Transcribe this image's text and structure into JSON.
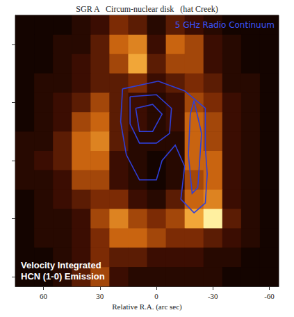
{
  "chart_data": {
    "type": "heatmap",
    "title": "SGR A   Circum-nuclear disk   (hat Creek)",
    "x_label": "Relative R.A. (arc sec)",
    "annotations": [
      "5 GHz Radio Continuum",
      "Velocity Integrated",
      "HCN (1-0) Emission"
    ],
    "xlim": [
      75,
      -65
    ],
    "xticks": [
      60,
      30,
      0,
      -30,
      -60
    ],
    "ylim": [
      -65,
      75
    ],
    "yticks": [
      60,
      30,
      0,
      -30,
      -60
    ],
    "tick_labels": "x",
    "grid": false,
    "x": [
      70,
      60,
      50,
      40,
      30,
      20,
      10,
      0,
      -10,
      -20,
      -30,
      -40,
      -50,
      -60
    ],
    "y": [
      70,
      60,
      50,
      40,
      30,
      20,
      10,
      0,
      -10,
      -20,
      -30,
      -40,
      -50,
      -60
    ],
    "intensity": [
      [
        0,
        0,
        0,
        1,
        2,
        4,
        3,
        1,
        3,
        2,
        1,
        0,
        0,
        0
      ],
      [
        0,
        0,
        1,
        1,
        3,
        6,
        7,
        2,
        6,
        5,
        2,
        1,
        0,
        0
      ],
      [
        0,
        0,
        1,
        2,
        3,
        5,
        8,
        3,
        5,
        5,
        2,
        1,
        0,
        0
      ],
      [
        0,
        1,
        1,
        2,
        3,
        3,
        4,
        2,
        3,
        4,
        3,
        1,
        1,
        0
      ],
      [
        0,
        1,
        2,
        3,
        5,
        3,
        2,
        1,
        2,
        5,
        4,
        2,
        1,
        0
      ],
      [
        0,
        1,
        2,
        5,
        6,
        3,
        2,
        1,
        2,
        6,
        5,
        2,
        1,
        0
      ],
      [
        1,
        1,
        3,
        6,
        7,
        3,
        1,
        1,
        1,
        6,
        5,
        2,
        1,
        0
      ],
      [
        1,
        2,
        3,
        6,
        6,
        2,
        1,
        0,
        1,
        6,
        6,
        2,
        1,
        0
      ],
      [
        1,
        1,
        2,
        5,
        5,
        2,
        1,
        0,
        1,
        5,
        6,
        2,
        1,
        0
      ],
      [
        0,
        1,
        2,
        3,
        4,
        4,
        2,
        1,
        3,
        6,
        7,
        2,
        1,
        0
      ],
      [
        0,
        1,
        1,
        2,
        5,
        7,
        5,
        4,
        5,
        8,
        9,
        3,
        1,
        0
      ],
      [
        0,
        1,
        1,
        2,
        4,
        6,
        6,
        5,
        4,
        4,
        3,
        2,
        1,
        0
      ],
      [
        0,
        0,
        1,
        2,
        4,
        3,
        3,
        2,
        2,
        2,
        1,
        1,
        0,
        0
      ],
      [
        0,
        0,
        1,
        3,
        5,
        2,
        1,
        1,
        1,
        1,
        1,
        0,
        0,
        0
      ]
    ],
    "contours": [
      {
        "x": [
          18,
          -1,
          -15,
          -26,
          -26,
          -27,
          -26,
          -20,
          -13,
          -15,
          -10,
          -3,
          0,
          9,
          16,
          19,
          18
        ],
        "y": [
          37,
          41,
          36,
          27,
          7,
          -7,
          -22,
          -27,
          -20,
          -3,
          8,
          0,
          -10,
          -10,
          3,
          20,
          37
        ]
      },
      {
        "x": [
          14,
          0,
          -8,
          -7,
          0,
          9,
          14,
          14
        ],
        "y": [
          33,
          34,
          27,
          14,
          9,
          9,
          19,
          33
        ]
      },
      {
        "x": [
          11,
          2,
          -3,
          2,
          9,
          11
        ],
        "y": [
          27,
          29,
          24,
          15,
          15,
          27
        ]
      },
      {
        "x": [
          -20,
          -24,
          -22,
          -19,
          -17,
          -18,
          -20
        ],
        "y": [
          31,
          14,
          -14,
          -17,
          3,
          24,
          31
        ]
      }
    ],
    "contour_color": "#2f3fd8"
  }
}
